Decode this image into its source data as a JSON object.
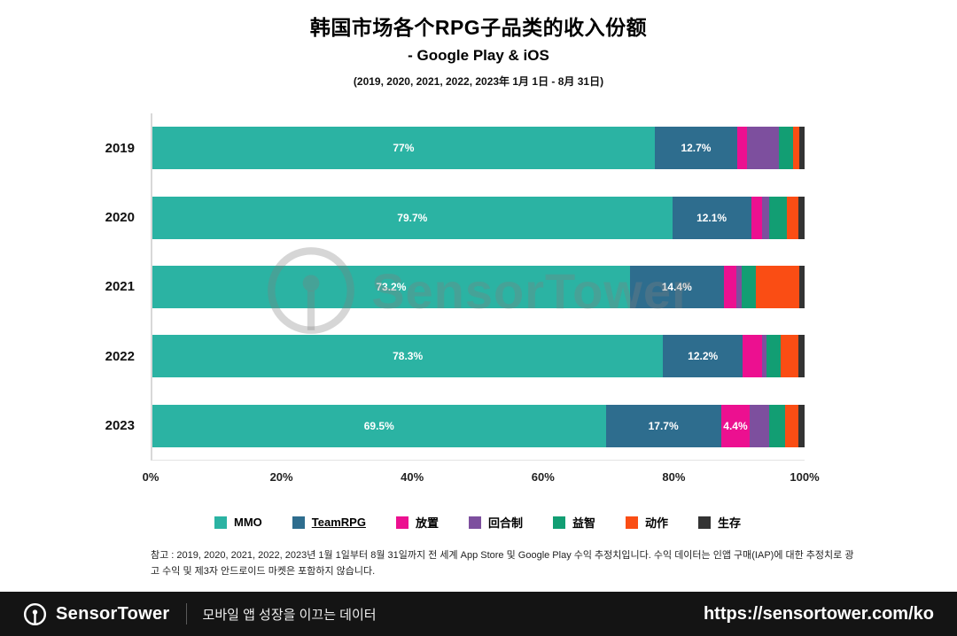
{
  "header": {
    "title": "韩国市场各个RPG子品类的收入份额",
    "subtitle": "- Google Play & iOS",
    "period": "(2019, 2020, 2021, 2022, 2023年 1月 1日 - 8月 31日)"
  },
  "chart_data": {
    "type": "bar",
    "orientation": "horizontal",
    "stacked": true,
    "title": "韩国市场各个RPG子品类的收入份额 - Google Play & iOS",
    "categories": [
      "2019",
      "2020",
      "2021",
      "2022",
      "2023"
    ],
    "series": [
      {
        "name": "MMO",
        "color": "#2bb3a3",
        "values": [
          77,
          79.7,
          73.2,
          78.3,
          69.5
        ],
        "labels": [
          "77%",
          "79.7%",
          "73.2%",
          "78.3%",
          "69.5%"
        ]
      },
      {
        "name": "TeamRPG",
        "color": "#2e6d8e",
        "values": [
          12.7,
          12.1,
          14.4,
          12.2,
          17.7
        ],
        "labels": [
          "12.7%",
          "12.1%",
          "14.4%",
          "12.2%",
          "17.7%"
        ]
      },
      {
        "name": "放置",
        "color": "#ec1090",
        "values": [
          1.5,
          1.7,
          2.0,
          3.0,
          4.4
        ],
        "labels": [
          "",
          "",
          "",
          "",
          "4.4%"
        ]
      },
      {
        "name": "回合制",
        "color": "#7d4f9e",
        "values": [
          4.8,
          1.1,
          0.7,
          0.7,
          3.0
        ],
        "labels": [
          "",
          "",
          "",
          "",
          ""
        ]
      },
      {
        "name": "益智",
        "color": "#129e73",
        "values": [
          2.2,
          2.7,
          2.2,
          2.2,
          2.4
        ],
        "labels": [
          "",
          "",
          "",
          "",
          ""
        ]
      },
      {
        "name": "动作",
        "color": "#fa4d14",
        "values": [
          1.0,
          1.7,
          6.7,
          2.6,
          2.0
        ],
        "labels": [
          "",
          "",
          "",
          "",
          ""
        ]
      },
      {
        "name": "生存",
        "color": "#333333",
        "values": [
          0.8,
          1.0,
          0.8,
          1.0,
          1.0
        ],
        "labels": [
          "",
          "",
          "",
          "",
          ""
        ]
      }
    ],
    "xlabel_ticks": [
      "0%",
      "20%",
      "40%",
      "60%",
      "80%",
      "100%"
    ],
    "xlim": [
      0,
      100
    ],
    "legend_position": "bottom",
    "grid": false
  },
  "legend": [
    {
      "name": "MMO",
      "color": "#2bb3a3",
      "underline": false
    },
    {
      "name": "TeamRPG",
      "color": "#2e6d8e",
      "underline": true
    },
    {
      "name": "放置",
      "color": "#ec1090",
      "underline": false
    },
    {
      "name": "回合制",
      "color": "#7d4f9e",
      "underline": false
    },
    {
      "name": "益智",
      "color": "#129e73",
      "underline": false
    },
    {
      "name": "动作",
      "color": "#fa4d14",
      "underline": false
    },
    {
      "name": "生存",
      "color": "#333333",
      "underline": false
    }
  ],
  "footnote": "참고 : 2019, 2020, 2021, 2022, 2023년 1월 1일부터 8월 31일까지 전 세계 App Store 및 Google Play 수익 추정치입니다. 수익 데이터는 인앱 구매(IAP)에 대한 추정치로 광고 수익 및 제3자 안드로이드 마켓은 포함하지 않습니다.",
  "watermark": "SensorTower",
  "footer": {
    "brand": "SensorTower",
    "tagline": "모바일 앱 성장을 이끄는 데이터",
    "url": "https://sensortower.com/ko"
  },
  "colors": {
    "footer_bg": "#141414",
    "axis_line": "#d8d8d8"
  }
}
